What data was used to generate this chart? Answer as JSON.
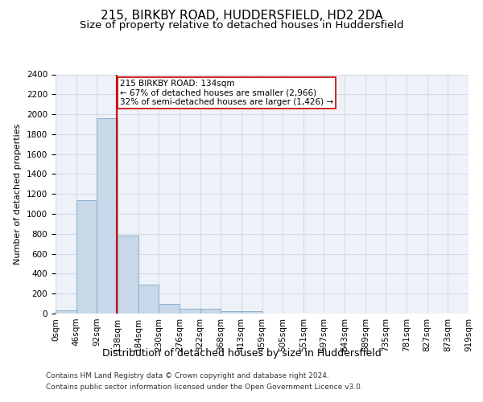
{
  "title1": "215, BIRKBY ROAD, HUDDERSFIELD, HD2 2DA",
  "title2": "Size of property relative to detached houses in Huddersfield",
  "xlabel": "Distribution of detached houses by size in Huddersfield",
  "ylabel": "Number of detached properties",
  "bin_labels": [
    "0sqm",
    "46sqm",
    "92sqm",
    "138sqm",
    "184sqm",
    "230sqm",
    "276sqm",
    "322sqm",
    "368sqm",
    "413sqm",
    "459sqm",
    "505sqm",
    "551sqm",
    "597sqm",
    "643sqm",
    "689sqm",
    "735sqm",
    "781sqm",
    "827sqm",
    "873sqm",
    "919sqm"
  ],
  "bar_values": [
    30,
    1140,
    1960,
    780,
    290,
    95,
    50,
    50,
    25,
    25,
    0,
    0,
    0,
    0,
    0,
    0,
    0,
    0,
    0,
    0
  ],
  "bar_color": "#c8d8e8",
  "bar_edge_color": "#7fa8c8",
  "grid_color": "#d0dce8",
  "background_color": "#eef2f8",
  "annotation_box_text": "215 BIRKBY ROAD: 134sqm\n← 67% of detached houses are smaller (2,966)\n32% of semi-detached houses are larger (1,426) →",
  "vline_x": 2.96,
  "vline_color": "#cc0000",
  "annotation_box_color": "#cc0000",
  "ylim": [
    0,
    2400
  ],
  "yticks": [
    0,
    200,
    400,
    600,
    800,
    1000,
    1200,
    1400,
    1600,
    1800,
    2000,
    2200,
    2400
  ],
  "footnote1": "Contains HM Land Registry data © Crown copyright and database right 2024.",
  "footnote2": "Contains public sector information licensed under the Open Government Licence v3.0.",
  "title1_fontsize": 11,
  "title2_fontsize": 9.5,
  "xlabel_fontsize": 9,
  "ylabel_fontsize": 8,
  "tick_fontsize": 7.5,
  "annotation_fontsize": 7.5,
  "footnote_fontsize": 6.5
}
